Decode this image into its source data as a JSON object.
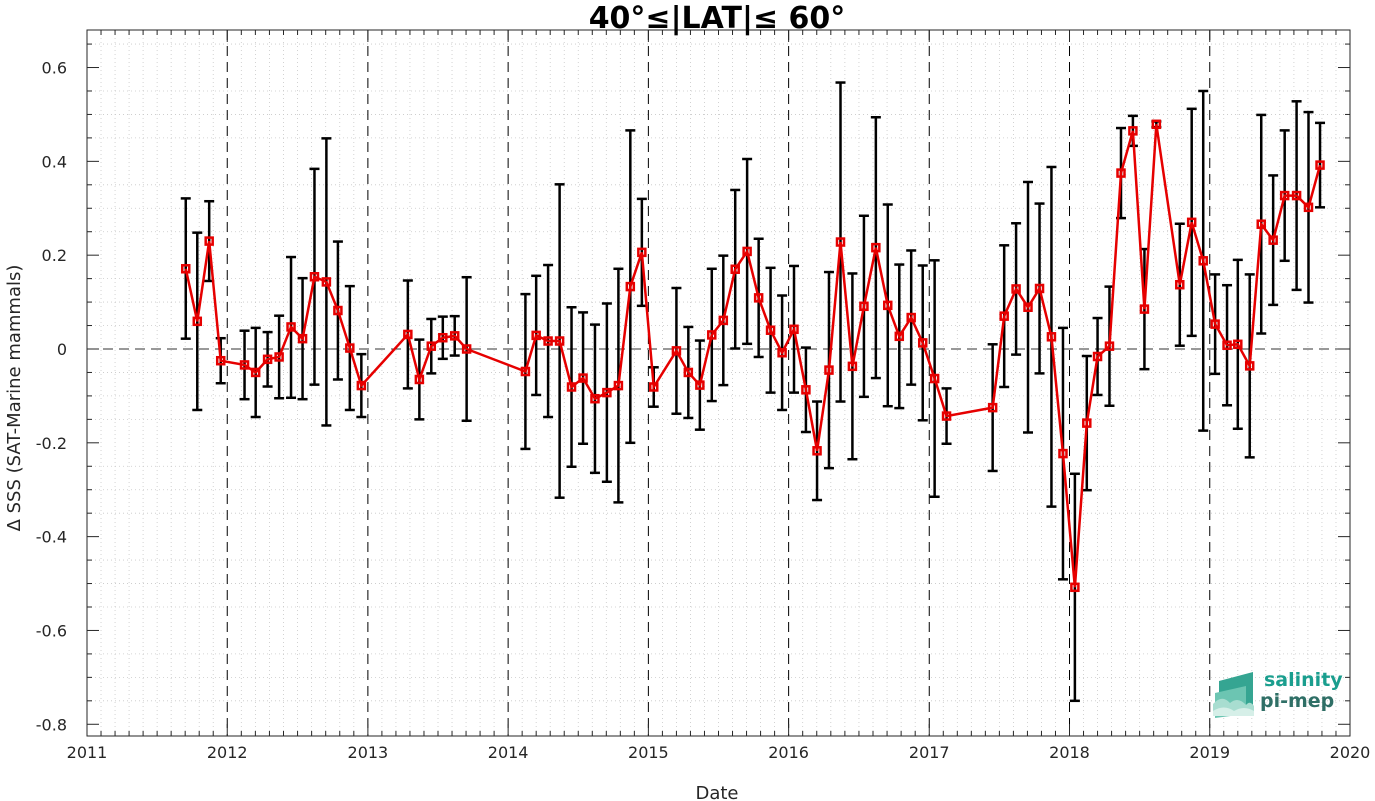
{
  "chart_data": {
    "type": "line",
    "title": "40°≤|LAT|≤ 60°",
    "xlabel": "Date",
    "ylabel": "Δ SSS (SAT-Marine mammals)",
    "xlim": [
      "2011-01-01",
      "2020-01-01"
    ],
    "ylim": [
      -0.825,
      0.68
    ],
    "x_ticks": [
      "2011",
      "2012",
      "2013",
      "2014",
      "2015",
      "2016",
      "2017",
      "2018",
      "2019",
      "2020"
    ],
    "y_ticks": [
      "-0.8",
      "-0.6",
      "-0.4",
      "-0.2",
      "0",
      "0.2",
      "0.4",
      "0.6"
    ],
    "y_tick_values": [
      -0.8,
      -0.6,
      -0.4,
      -0.2,
      0,
      0.2,
      0.4,
      0.6
    ],
    "grid": "minor dotted",
    "year_separator_lines": true,
    "zero_line": true,
    "colors": {
      "series": "#e60000",
      "errorbar": "#000000",
      "logo": "#1a9e8e"
    },
    "series": [
      {
        "points": [
          {
            "date": "2011-09-15",
            "value": 0.171,
            "lower": 0.022,
            "upper": 0.321
          },
          {
            "date": "2011-10-15",
            "value": 0.059,
            "lower": -0.13,
            "upper": 0.248
          },
          {
            "date": "2011-11-15",
            "value": 0.23,
            "lower": 0.145,
            "upper": 0.315
          },
          {
            "date": "2011-12-15",
            "value": -0.025,
            "lower": -0.073,
            "upper": 0.023
          },
          {
            "date": "2012-02-15",
            "value": -0.034,
            "lower": -0.107,
            "upper": 0.039
          },
          {
            "date": "2012-03-15",
            "value": -0.05,
            "lower": -0.145,
            "upper": 0.045
          },
          {
            "date": "2012-04-15",
            "value": -0.022,
            "lower": -0.08,
            "upper": 0.036
          },
          {
            "date": "2012-05-15",
            "value": -0.017,
            "lower": -0.105,
            "upper": 0.071
          },
          {
            "date": "2012-06-15",
            "value": 0.047,
            "lower": -0.104,
            "upper": 0.196
          },
          {
            "date": "2012-07-15",
            "value": 0.022,
            "lower": -0.107,
            "upper": 0.151
          },
          {
            "date": "2012-08-15",
            "value": 0.154,
            "lower": -0.076,
            "upper": 0.384
          },
          {
            "date": "2012-09-15",
            "value": 0.143,
            "lower": -0.163,
            "upper": 0.449
          },
          {
            "date": "2012-10-15",
            "value": 0.082,
            "lower": -0.065,
            "upper": 0.229
          },
          {
            "date": "2012-11-15",
            "value": 0.002,
            "lower": -0.13,
            "upper": 0.134
          },
          {
            "date": "2012-12-15",
            "value": -0.078,
            "lower": -0.145,
            "upper": -0.011
          },
          {
            "date": "2013-04-15",
            "value": 0.031,
            "lower": -0.084,
            "upper": 0.146
          },
          {
            "date": "2013-05-15",
            "value": -0.065,
            "lower": -0.15,
            "upper": 0.02
          },
          {
            "date": "2013-06-15",
            "value": 0.006,
            "lower": -0.052,
            "upper": 0.064
          },
          {
            "date": "2013-07-15",
            "value": 0.024,
            "lower": -0.021,
            "upper": 0.069
          },
          {
            "date": "2013-08-15",
            "value": 0.028,
            "lower": -0.014,
            "upper": 0.07
          },
          {
            "date": "2013-09-15",
            "value": 0.0,
            "lower": -0.153,
            "upper": 0.153
          },
          {
            "date": "2014-02-15",
            "value": -0.048,
            "lower": -0.213,
            "upper": 0.117
          },
          {
            "date": "2014-03-15",
            "value": 0.029,
            "lower": -0.098,
            "upper": 0.156
          },
          {
            "date": "2014-04-15",
            "value": 0.017,
            "lower": -0.145,
            "upper": 0.179
          },
          {
            "date": "2014-05-15",
            "value": 0.017,
            "lower": -0.317,
            "upper": 0.351
          },
          {
            "date": "2014-06-15",
            "value": -0.081,
            "lower": -0.251,
            "upper": 0.089
          },
          {
            "date": "2014-07-15",
            "value": -0.062,
            "lower": -0.202,
            "upper": 0.078
          },
          {
            "date": "2014-08-15",
            "value": -0.106,
            "lower": -0.264,
            "upper": 0.052
          },
          {
            "date": "2014-09-15",
            "value": -0.093,
            "lower": -0.283,
            "upper": 0.097
          },
          {
            "date": "2014-10-15",
            "value": -0.078,
            "lower": -0.327,
            "upper": 0.171
          },
          {
            "date": "2014-11-15",
            "value": 0.133,
            "lower": -0.2,
            "upper": 0.466
          },
          {
            "date": "2014-12-15",
            "value": 0.206,
            "lower": 0.092,
            "upper": 0.32
          },
          {
            "date": "2015-01-15",
            "value": -0.081,
            "lower": -0.123,
            "upper": -0.039
          },
          {
            "date": "2015-03-15",
            "value": -0.004,
            "lower": -0.138,
            "upper": 0.13
          },
          {
            "date": "2015-04-15",
            "value": -0.05,
            "lower": -0.147,
            "upper": 0.047
          },
          {
            "date": "2015-05-15",
            "value": -0.077,
            "lower": -0.172,
            "upper": 0.018
          },
          {
            "date": "2015-06-15",
            "value": 0.03,
            "lower": -0.111,
            "upper": 0.171
          },
          {
            "date": "2015-07-15",
            "value": 0.061,
            "lower": -0.077,
            "upper": 0.199
          },
          {
            "date": "2015-08-15",
            "value": 0.17,
            "lower": 0.001,
            "upper": 0.339
          },
          {
            "date": "2015-09-15",
            "value": 0.208,
            "lower": 0.011,
            "upper": 0.405
          },
          {
            "date": "2015-10-15",
            "value": 0.109,
            "lower": -0.017,
            "upper": 0.235
          },
          {
            "date": "2015-11-15",
            "value": 0.04,
            "lower": -0.093,
            "upper": 0.173
          },
          {
            "date": "2015-12-15",
            "value": -0.008,
            "lower": -0.13,
            "upper": 0.114
          },
          {
            "date": "2016-01-15",
            "value": 0.042,
            "lower": -0.093,
            "upper": 0.177
          },
          {
            "date": "2016-02-15",
            "value": -0.087,
            "lower": -0.177,
            "upper": 0.003
          },
          {
            "date": "2016-03-15",
            "value": -0.217,
            "lower": -0.322,
            "upper": -0.112
          },
          {
            "date": "2016-04-15",
            "value": -0.045,
            "lower": -0.254,
            "upper": 0.164
          },
          {
            "date": "2016-05-15",
            "value": 0.228,
            "lower": -0.112,
            "upper": 0.568
          },
          {
            "date": "2016-06-15",
            "value": -0.037,
            "lower": -0.235,
            "upper": 0.161
          },
          {
            "date": "2016-07-15",
            "value": 0.091,
            "lower": -0.102,
            "upper": 0.284
          },
          {
            "date": "2016-08-15",
            "value": 0.216,
            "lower": -0.062,
            "upper": 0.494
          },
          {
            "date": "2016-09-15",
            "value": 0.093,
            "lower": -0.122,
            "upper": 0.308
          },
          {
            "date": "2016-10-15",
            "value": 0.027,
            "lower": -0.126,
            "upper": 0.18
          },
          {
            "date": "2016-11-15",
            "value": 0.067,
            "lower": -0.076,
            "upper": 0.21
          },
          {
            "date": "2016-12-15",
            "value": 0.013,
            "lower": -0.152,
            "upper": 0.178
          },
          {
            "date": "2017-01-15",
            "value": -0.063,
            "lower": -0.315,
            "upper": 0.189
          },
          {
            "date": "2017-02-15",
            "value": -0.143,
            "lower": -0.202,
            "upper": -0.084
          },
          {
            "date": "2017-06-15",
            "value": -0.125,
            "lower": -0.26,
            "upper": 0.01
          },
          {
            "date": "2017-07-15",
            "value": 0.07,
            "lower": -0.081,
            "upper": 0.221
          },
          {
            "date": "2017-08-15",
            "value": 0.128,
            "lower": -0.012,
            "upper": 0.268
          },
          {
            "date": "2017-09-15",
            "value": 0.089,
            "lower": -0.178,
            "upper": 0.356
          },
          {
            "date": "2017-10-15",
            "value": 0.129,
            "lower": -0.052,
            "upper": 0.31
          },
          {
            "date": "2017-11-15",
            "value": 0.026,
            "lower": -0.336,
            "upper": 0.388
          },
          {
            "date": "2017-12-15",
            "value": -0.223,
            "lower": -0.491,
            "upper": 0.045
          },
          {
            "date": "2018-01-15",
            "value": -0.508,
            "lower": -0.75,
            "upper": -0.266
          },
          {
            "date": "2018-02-15",
            "value": -0.158,
            "lower": -0.301,
            "upper": -0.015
          },
          {
            "date": "2018-03-15",
            "value": -0.016,
            "lower": -0.098,
            "upper": 0.066
          },
          {
            "date": "2018-04-15",
            "value": 0.006,
            "lower": -0.121,
            "upper": 0.133
          },
          {
            "date": "2018-05-15",
            "value": 0.375,
            "lower": 0.279,
            "upper": 0.471
          },
          {
            "date": "2018-06-15",
            "value": 0.465,
            "lower": 0.433,
            "upper": 0.497
          },
          {
            "date": "2018-07-15",
            "value": 0.085,
            "lower": -0.043,
            "upper": 0.213
          },
          {
            "date": "2018-08-15",
            "value": 0.479,
            "lower": 0.473,
            "upper": 0.485
          },
          {
            "date": "2018-10-15",
            "value": 0.137,
            "lower": 0.007,
            "upper": 0.267
          },
          {
            "date": "2018-11-15",
            "value": 0.27,
            "lower": 0.028,
            "upper": 0.512
          },
          {
            "date": "2018-12-15",
            "value": 0.188,
            "lower": -0.174,
            "upper": 0.55
          },
          {
            "date": "2019-01-15",
            "value": 0.053,
            "lower": -0.053,
            "upper": 0.159
          },
          {
            "date": "2019-02-15",
            "value": 0.008,
            "lower": -0.12,
            "upper": 0.136
          },
          {
            "date": "2019-03-15",
            "value": 0.01,
            "lower": -0.17,
            "upper": 0.19
          },
          {
            "date": "2019-04-15",
            "value": -0.036,
            "lower": -0.231,
            "upper": 0.159
          },
          {
            "date": "2019-05-15",
            "value": 0.266,
            "lower": 0.033,
            "upper": 0.499
          },
          {
            "date": "2019-06-15",
            "value": 0.232,
            "lower": 0.094,
            "upper": 0.37
          },
          {
            "date": "2019-07-15",
            "value": 0.327,
            "lower": 0.188,
            "upper": 0.466
          },
          {
            "date": "2019-08-15",
            "value": 0.327,
            "lower": 0.126,
            "upper": 0.528
          },
          {
            "date": "2019-09-15",
            "value": 0.302,
            "lower": 0.099,
            "upper": 0.505
          },
          {
            "date": "2019-10-15",
            "value": 0.392,
            "lower": 0.302,
            "upper": 0.482
          }
        ]
      }
    ]
  },
  "logo": {
    "line1": "salinity",
    "line2": "pi-mep"
  }
}
